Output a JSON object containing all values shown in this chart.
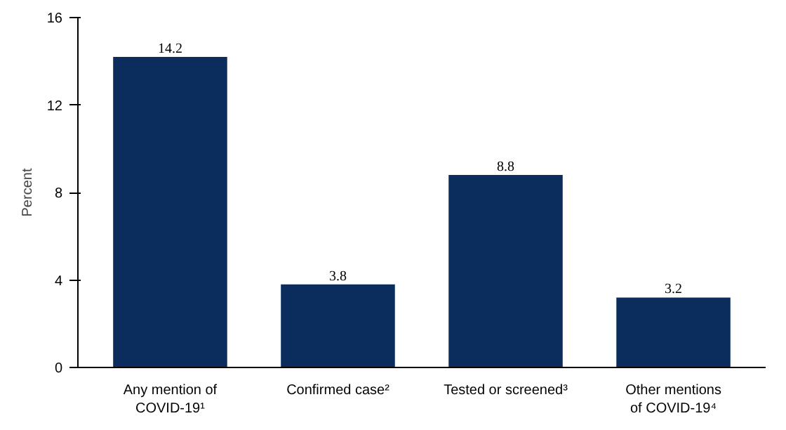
{
  "chart_data": {
    "type": "bar",
    "ylabel": "Percent",
    "categories": [
      "Any mention of\nCOVID-19¹",
      "Confirmed case²",
      "Tested or screened³",
      "Other mentions\nof COVID-19⁴"
    ],
    "values": [
      14.2,
      3.8,
      8.8,
      3.2
    ],
    "color": "#0b2d5e",
    "ylim": [
      0,
      16
    ],
    "yticks": [
      0,
      4,
      8,
      12,
      16
    ],
    "grid": false,
    "data_labels": true
  }
}
